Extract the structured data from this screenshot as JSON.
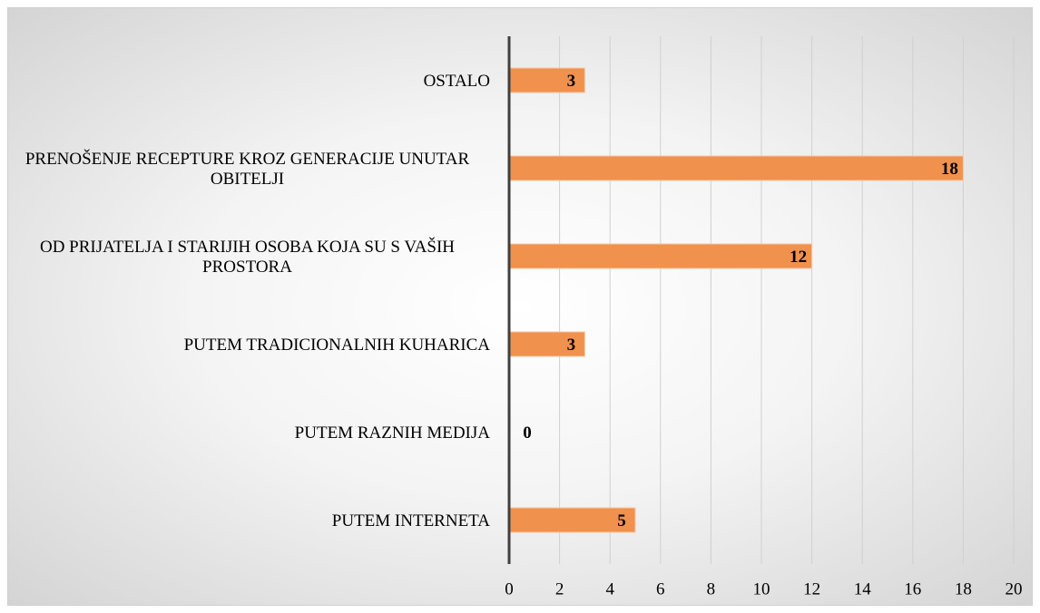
{
  "chart_data": {
    "type": "bar",
    "orientation": "horizontal",
    "categories": [
      "OSTALO",
      "PRENOŠENJE RECEPTURE KROZ GENERACIJE UNUTAR OBITELJI",
      "OD PRIJATELJA I STARIJIH OSOBA KOJA SU S VAŠIH PROSTORA",
      "PUTEM TRADICIONALNIH KUHARICA",
      "PUTEM RAZNIH MEDIJA",
      "PUTEM INTERNETA"
    ],
    "values": [
      3,
      18,
      12,
      3,
      0,
      5
    ],
    "color": "#f0914e",
    "xlim": [
      0,
      20
    ],
    "xticks": [
      0,
      2,
      4,
      6,
      8,
      10,
      12,
      14,
      16,
      18,
      20
    ],
    "grid": true
  }
}
